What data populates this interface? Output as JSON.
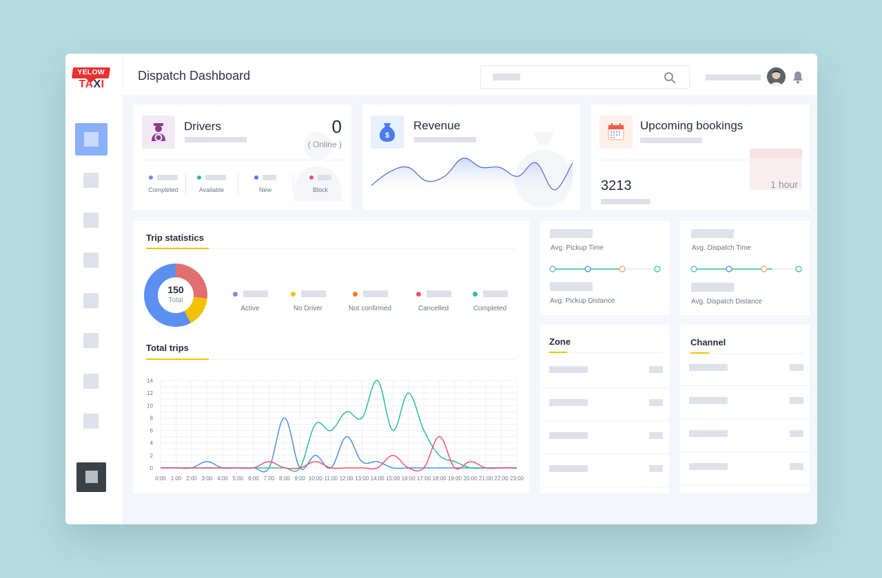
{
  "app": {
    "logo_top": "YELOW",
    "logo_bottom_a": "TA",
    "logo_bottom_x": "X",
    "logo_bottom_b": "I",
    "page_title": "Dispatch Dashboard"
  },
  "drivers": {
    "title": "Drivers",
    "count": "0",
    "online": "( Online )",
    "stats": [
      "Completed",
      "Available",
      "New",
      "Block"
    ]
  },
  "revenue": {
    "title": "Revenue"
  },
  "bookings": {
    "title": "Upcoming bookings",
    "count": "3213",
    "time": "1 hour"
  },
  "trip_stats": {
    "title": "Trip statistics",
    "total_value": "150",
    "total_label": "Total",
    "legend": [
      "Active",
      "No Driver",
      "Not confirmed",
      "Cancelled",
      "Completed"
    ]
  },
  "metrics": {
    "pickup_time": "Avg. Pickup Time",
    "pickup_distance": "Avg. Pickup Distance",
    "dispatch_time": "Avg. Dispatch Time",
    "dispatch_distance": "Avg. Dispatch Distance"
  },
  "zone": {
    "title": "Zone"
  },
  "channel": {
    "title": "Channel"
  },
  "total_trips": {
    "title": "Total trips"
  },
  "colors": {
    "active": "#7f86e3",
    "no_driver": "#f2c200",
    "not_confirmed": "#f07a1a",
    "cancelled": "#f0506e",
    "completed": "#2bbd93",
    "blue_series": "#4a90e2",
    "accent": "#f2c200",
    "donut_red": "#e06f6f",
    "donut_blue": "#5b8ff0"
  },
  "chart_data": {
    "type": "line",
    "x": [
      "0:00",
      "1:00",
      "2:00",
      "3:00",
      "4:00",
      "5:00",
      "6:00",
      "7:00",
      "8:00",
      "9:00",
      "10:00",
      "11:00",
      "12:00",
      "13:00",
      "14:00",
      "15:00",
      "16:00",
      "17:00",
      "18:00",
      "19:00",
      "20:00",
      "21:00",
      "22:00",
      "23:00"
    ],
    "ylim": [
      0,
      14
    ],
    "yticks": [
      0,
      2,
      4,
      6,
      8,
      10,
      12,
      14
    ],
    "grid": true,
    "series": [
      {
        "color": "#4a90e2",
        "values": [
          0,
          0,
          0,
          1,
          0,
          0,
          0,
          0,
          8,
          0,
          2,
          0,
          5,
          1,
          1,
          0,
          0,
          0,
          0,
          0,
          0,
          0,
          0,
          0
        ]
      },
      {
        "color": "#2bbd93",
        "values": [
          0,
          0,
          0,
          0,
          0,
          0,
          0,
          0,
          0,
          0,
          7,
          6,
          9,
          8,
          14,
          6,
          12,
          6,
          2,
          1,
          0,
          0,
          0,
          0
        ]
      },
      {
        "color": "#f0506e",
        "values": [
          0,
          0,
          0,
          0,
          0,
          0,
          0,
          1,
          0,
          0,
          1,
          0,
          0,
          0,
          0,
          2,
          0,
          0,
          5,
          0,
          1,
          0,
          0,
          0
        ]
      }
    ]
  },
  "donut_data": {
    "total": 150,
    "segments": [
      {
        "label": "Cancelled",
        "value": 40,
        "color": "#e06f6f"
      },
      {
        "label": "No Driver",
        "value": 23,
        "color": "#f2c200"
      },
      {
        "label": "Active",
        "value": 87,
        "color": "#5b8ff0"
      }
    ]
  },
  "revenue_data": {
    "values": [
      2,
      5,
      6,
      3,
      4,
      8,
      6,
      6,
      4,
      7,
      1,
      7
    ]
  }
}
